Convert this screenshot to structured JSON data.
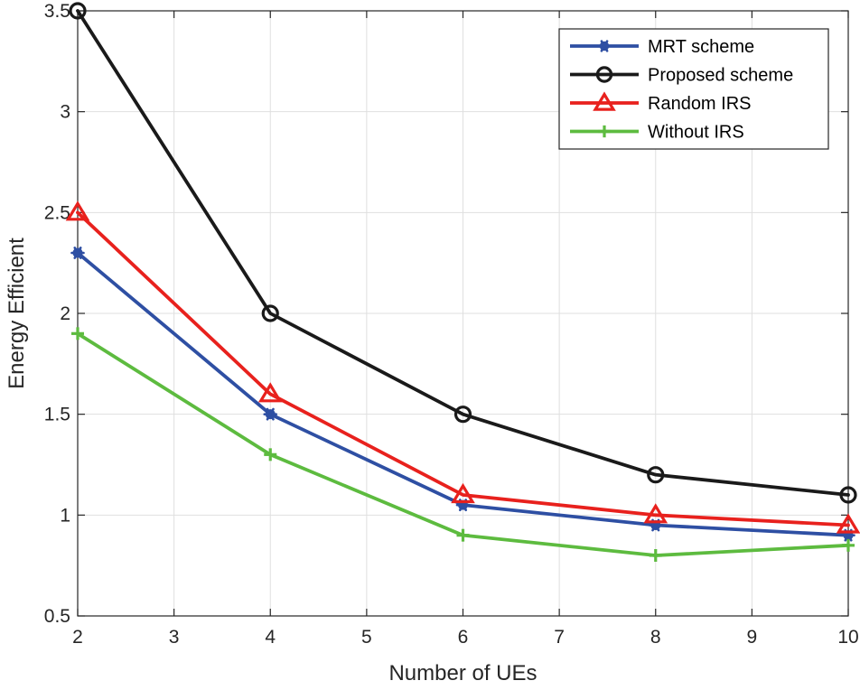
{
  "chart_data": {
    "type": "line",
    "title": "",
    "xlabel": "Number of UEs",
    "ylabel": "Energy Efficient",
    "xlim": [
      2,
      10
    ],
    "ylim": [
      0.5,
      3.5
    ],
    "xticks": [
      2,
      3,
      4,
      5,
      6,
      7,
      8,
      9,
      10
    ],
    "yticks": [
      0.5,
      1,
      1.5,
      2,
      2.5,
      3,
      3.5
    ],
    "xtick_labels": [
      "2",
      "3",
      "4",
      "5",
      "6",
      "7",
      "8",
      "9",
      "10"
    ],
    "ytick_labels": [
      "0.5",
      "1",
      "1.5",
      "2",
      "2.5",
      "3",
      "3.5"
    ],
    "grid": true,
    "legend_position": "top-right",
    "x": [
      2,
      4,
      6,
      8,
      10
    ],
    "series": [
      {
        "name": "MRT scheme",
        "values": [
          2.3,
          1.5,
          1.05,
          0.95,
          0.9
        ],
        "color": "#2E4FA3",
        "marker": "asterisk"
      },
      {
        "name": "Proposed scheme",
        "values": [
          3.5,
          2.0,
          1.5,
          1.2,
          1.1
        ],
        "color": "#1A1A1A",
        "marker": "circle"
      },
      {
        "name": "Random IRS",
        "values": [
          2.5,
          1.6,
          1.1,
          1.0,
          0.95
        ],
        "color": "#E8211D",
        "marker": "triangle"
      },
      {
        "name": "Without IRS",
        "values": [
          1.9,
          1.3,
          0.9,
          0.8,
          0.85
        ],
        "color": "#5DBB3F",
        "marker": "plus"
      }
    ]
  }
}
